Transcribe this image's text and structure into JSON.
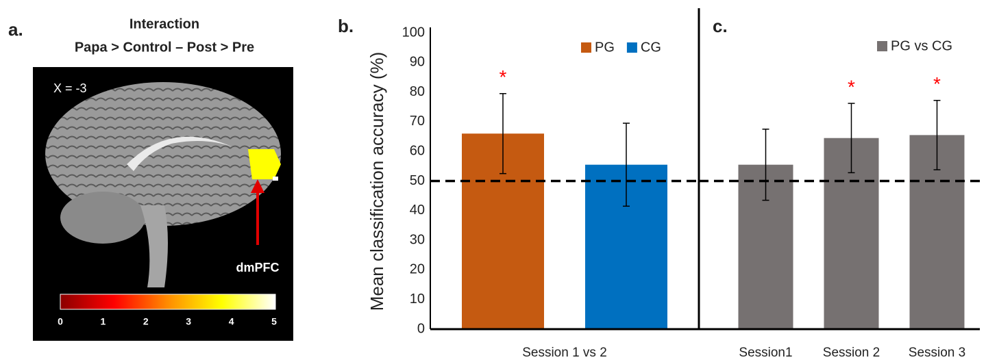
{
  "brain_panel": {
    "panel_label": "a.",
    "title": "Interaction",
    "subtitle": "Papa > Control – Post > Pre",
    "slice_label": "X = -3",
    "region_label": "dmPFC",
    "colorbar": {
      "lim": [
        0,
        5
      ],
      "ticks": [
        0,
        1,
        2,
        3,
        4,
        5
      ],
      "colors": [
        "#8b0000",
        "#ff0000",
        "#ff8c00",
        "#ffff00",
        "#ffffff"
      ]
    }
  },
  "chart_data": [
    {
      "type": "bar",
      "panel_label": "b.",
      "ylabel": "Mean classification accuracy (%)",
      "categories": [
        "Session 1 vs 2"
      ],
      "series": [
        {
          "name": "PG",
          "color": "#c55a11",
          "values": [
            66
          ],
          "errors": [
            13.5
          ],
          "significant": [
            true
          ]
        },
        {
          "name": "CG",
          "color": "#0070c0",
          "values": [
            55.5
          ],
          "errors": [
            14
          ],
          "significant": [
            false
          ]
        }
      ],
      "significance_marker": "*",
      "reference_line": 50,
      "ylim": [
        0,
        100
      ],
      "yticks": [
        0,
        10,
        20,
        30,
        40,
        50,
        60,
        70,
        80,
        90,
        100
      ]
    },
    {
      "type": "bar",
      "panel_label": "c.",
      "categories": [
        "Session1",
        "Session 2",
        "Session 3"
      ],
      "series": [
        {
          "name": "PG vs CG",
          "color": "#767171",
          "values": [
            55.5,
            64.5,
            65.5
          ],
          "errors": [
            12,
            11.7,
            11.7
          ],
          "significant": [
            false,
            true,
            true
          ]
        }
      ],
      "significance_marker": "*",
      "reference_line": 50,
      "ylim": [
        0,
        100
      ]
    }
  ]
}
